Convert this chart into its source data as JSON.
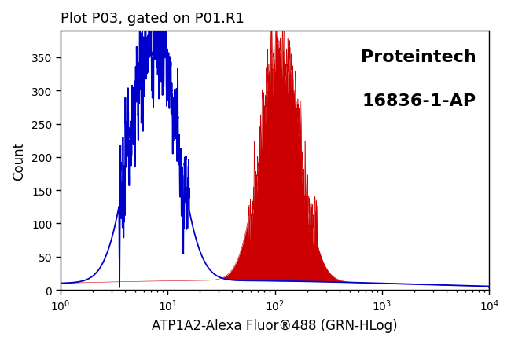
{
  "title": "Plot P03, gated on P01.R1",
  "xlabel": "ATP1A2-Alexa Fluor®488 (GRN-HLog)",
  "ylabel": "Count",
  "brand_line1": "Proteintech",
  "brand_line2": "16836-1-AP",
  "ylim": [
    0,
    390
  ],
  "yticks": [
    0,
    50,
    100,
    150,
    200,
    250,
    300,
    350
  ],
  "xticks_log": [
    0,
    1,
    2,
    3,
    4
  ],
  "blue_color": "#0000CC",
  "red_color": "#CC0000",
  "bg_color": "#FFFFFF",
  "blue_peak_log": 0.87,
  "blue_peak_height": 370,
  "blue_sigma": 0.21,
  "red_peak_log": 2.05,
  "red_peak_height": 360,
  "red_sigma": 0.18,
  "noise_level": 14,
  "title_fontsize": 13,
  "label_fontsize": 12,
  "brand_fontsize": 16
}
